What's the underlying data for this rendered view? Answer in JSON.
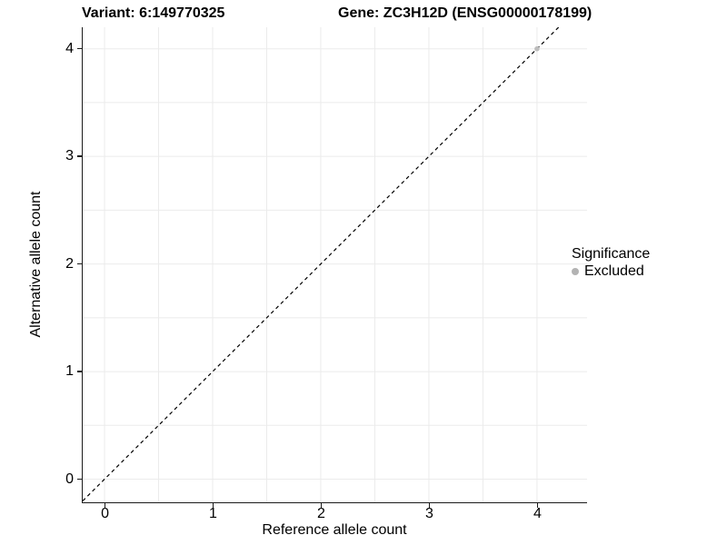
{
  "titles": {
    "variant": "Variant: 6:149770325",
    "gene": "Gene: ZC3H12D (ENSG00000178199)"
  },
  "chart_data": {
    "type": "scatter",
    "xlabel": "Reference allele count",
    "ylabel": "Alternative allele count",
    "x_ticks": [
      0,
      1,
      2,
      3,
      4
    ],
    "y_ticks": [
      0,
      1,
      2,
      3,
      4
    ],
    "x_domain": [
      -0.202,
      4.463
    ],
    "y_domain": [
      -0.215,
      4.2
    ],
    "grid_step": 0.5,
    "grid_on": true,
    "points": [
      {
        "x": 4,
        "y": 4,
        "significance": "Excluded"
      }
    ],
    "identity_line": {
      "style": "dashed",
      "from": -0.202,
      "to": 4.2
    },
    "legend": {
      "title": "Significance",
      "position": "right",
      "items": [
        {
          "label": "Excluded",
          "color": "#b3b3b3"
        }
      ]
    },
    "colors": {
      "point": "#bdbdbd",
      "grid": "#ebebeb",
      "axis": "#1a1a1a",
      "diagonal": "#000000"
    }
  }
}
